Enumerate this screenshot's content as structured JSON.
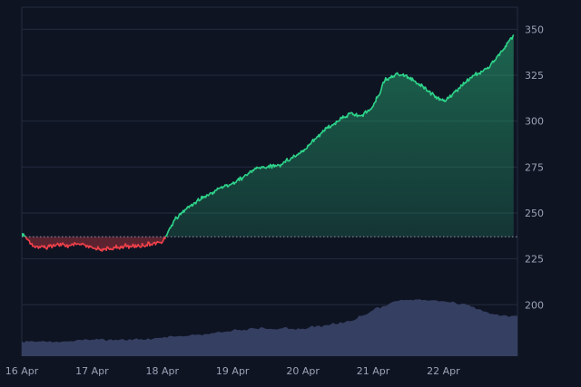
{
  "chart_data": {
    "type": "area",
    "title": "",
    "xlabel": "",
    "ylabel": "",
    "x_ticks": [
      "16 Apr",
      "17 Apr",
      "18 Apr",
      "19 Apr",
      "20 Apr",
      "21 Apr",
      "22 Apr"
    ],
    "y_ticks": [
      200,
      225,
      250,
      275,
      300,
      325,
      350
    ],
    "ylim": [
      172,
      362
    ],
    "baseline": 237,
    "grid": true,
    "legend": "none",
    "colors": {
      "above": "#2ed48a",
      "below": "#f0414a",
      "baseline": "#8a94a8",
      "volume": "#3a4468",
      "background": "#0f1423",
      "grid": "#232b3d",
      "tick_text": "#9aa3b5"
    },
    "series": [
      {
        "x": [
          "16 Apr 00:00",
          "16 Apr 04:00",
          "16 Apr 08:00",
          "16 Apr 12:00",
          "16 Apr 16:00",
          "16 Apr 20:00",
          "17 Apr 00:00",
          "17 Apr 04:00",
          "17 Apr 08:00",
          "17 Apr 12:00",
          "17 Apr 16:00",
          "17 Apr 20:00",
          "18 Apr 00:00",
          "18 Apr 04:00",
          "18 Apr 08:00",
          "18 Apr 12:00",
          "18 Apr 16:00",
          "18 Apr 20:00",
          "19 Apr 00:00",
          "19 Apr 04:00",
          "19 Apr 08:00",
          "19 Apr 12:00",
          "19 Apr 16:00",
          "19 Apr 20:00",
          "20 Apr 00:00",
          "20 Apr 04:00",
          "20 Apr 08:00",
          "20 Apr 12:00",
          "20 Apr 16:00",
          "20 Apr 20:00",
          "21 Apr 00:00",
          "21 Apr 04:00",
          "21 Apr 08:00",
          "21 Apr 12:00",
          "21 Apr 16:00",
          "21 Apr 20:00",
          "22 Apr 00:00",
          "22 Apr 04:00",
          "22 Apr 08:00",
          "22 Apr 12:00",
          "22 Apr 16:00",
          "22 Apr 20:00",
          "23 Apr 00:00"
        ],
        "values": [
          239,
          232,
          231,
          233,
          232,
          233,
          231,
          230,
          231,
          232,
          232,
          233,
          234,
          246,
          252,
          257,
          260,
          264,
          266,
          270,
          274,
          275,
          276,
          280,
          284,
          290,
          296,
          300,
          304,
          303,
          308,
          322,
          326,
          324,
          320,
          315,
          311,
          316,
          322,
          326,
          330,
          338,
          347
        ]
      },
      {
        "name": "",
        "x": [
          "16 Apr 00:00",
          "16 Apr 08:00",
          "16 Apr 16:00",
          "17 Apr 00:00",
          "17 Apr 08:00",
          "17 Apr 16:00",
          "18 Apr 00:00",
          "18 Apr 08:00",
          "18 Apr 16:00",
          "19 Apr 00:00",
          "19 Apr 08:00",
          "19 Apr 16:00",
          "20 Apr 00:00",
          "20 Apr 08:00",
          "20 Apr 16:00",
          "21 Apr 00:00",
          "21 Apr 08:00",
          "21 Apr 16:00",
          "22 Apr 00:00",
          "22 Apr 08:00",
          "22 Apr 16:00",
          "23 Apr 00:00"
        ],
        "values": [
          180,
          180,
          180,
          181,
          181,
          181,
          182,
          183,
          184,
          186,
          187,
          187,
          187,
          189,
          191,
          197,
          202,
          203,
          202,
          200,
          195,
          194
        ]
      }
    ]
  }
}
